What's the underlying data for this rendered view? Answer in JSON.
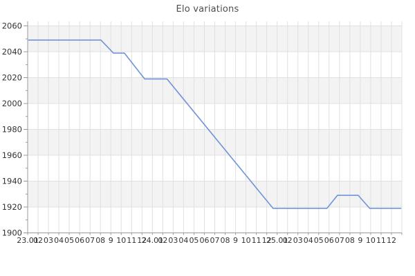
{
  "title": "Elo variations",
  "colors": {
    "line": "#6f93d9",
    "band_gray": "#f3f3f3",
    "band_white": "#ffffff",
    "gridline": "#e0e0e0",
    "axis": "#999999",
    "tick_label": "#333333",
    "title_text": "#4d4d4d"
  },
  "chart_data": {
    "type": "line",
    "title": "Elo variations",
    "xlabel": "",
    "ylabel": "",
    "legend": "none",
    "grid": "on",
    "background_bands": "alternating gray/white per 20-point row",
    "x_tick_labels": [
      "23.01",
      "02",
      "03",
      "04",
      "05",
      "06",
      "07",
      "08",
      "9",
      "10",
      "11",
      "12",
      "24.01",
      "02",
      "03",
      "04",
      "05",
      "06",
      "07",
      "08",
      "9",
      "10",
      "11",
      "12",
      "25.01",
      "02",
      "03",
      "04",
      "05",
      "06",
      "07",
      "08",
      "9",
      "10",
      "11",
      "12"
    ],
    "y_ticks": [
      2060,
      2040,
      2020,
      2000,
      1980,
      1960,
      1940,
      1920,
      1900
    ],
    "y_minor_step": 10,
    "ylim": [
      1900,
      2060
    ],
    "series": [
      {
        "name": "Elo",
        "color": "#6f93d9",
        "points": [
          {
            "t": 0.05,
            "elo": 2049
          },
          {
            "t": 7.05,
            "elo": 2049
          },
          {
            "t": 8.25,
            "elo": 2039
          },
          {
            "t": 9.3,
            "elo": 2039
          },
          {
            "t": 11.25,
            "elo": 2019
          },
          {
            "t": 13.4,
            "elo": 2019
          },
          {
            "t": 23.6,
            "elo": 1919
          },
          {
            "t": 28.8,
            "elo": 1919
          },
          {
            "t": 29.8,
            "elo": 1929
          },
          {
            "t": 31.8,
            "elo": 1929
          },
          {
            "t": 32.9,
            "elo": 1919
          },
          {
            "t": 35.95,
            "elo": 1919
          }
        ]
      }
    ]
  }
}
